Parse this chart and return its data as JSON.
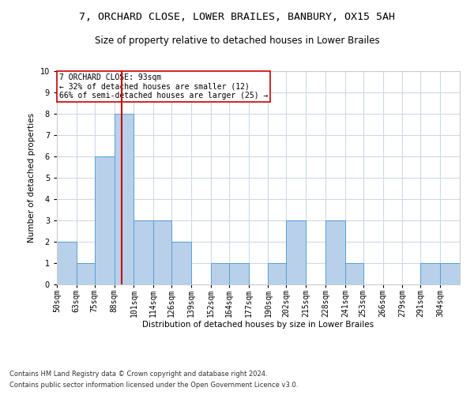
{
  "title": "7, ORCHARD CLOSE, LOWER BRAILES, BANBURY, OX15 5AH",
  "subtitle": "Size of property relative to detached houses in Lower Brailes",
  "xlabel": "Distribution of detached houses by size in Lower Brailes",
  "ylabel": "Number of detached properties",
  "footnote1": "Contains HM Land Registry data © Crown copyright and database right 2024.",
  "footnote2": "Contains public sector information licensed under the Open Government Licence v3.0.",
  "annotation_line1": "7 ORCHARD CLOSE: 93sqm",
  "annotation_line2": "← 32% of detached houses are smaller (12)",
  "annotation_line3": "66% of semi-detached houses are larger (25) →",
  "property_size": 93,
  "bar_color": "#b8d0ea",
  "bar_edge_color": "#5a9fd4",
  "redline_color": "#cc0000",
  "grid_color": "#d0d8e8",
  "background_color": "#ffffff",
  "categories": [
    "50sqm",
    "63sqm",
    "75sqm",
    "88sqm",
    "101sqm",
    "114sqm",
    "126sqm",
    "139sqm",
    "152sqm",
    "164sqm",
    "177sqm",
    "190sqm",
    "202sqm",
    "215sqm",
    "228sqm",
    "241sqm",
    "253sqm",
    "266sqm",
    "279sqm",
    "291sqm",
    "304sqm"
  ],
  "bin_edges": [
    50,
    63,
    75,
    88,
    101,
    114,
    126,
    139,
    152,
    164,
    177,
    190,
    202,
    215,
    228,
    241,
    253,
    266,
    279,
    291,
    304,
    317
  ],
  "values": [
    2,
    1,
    6,
    8,
    3,
    3,
    2,
    0,
    1,
    1,
    0,
    1,
    3,
    0,
    3,
    1,
    0,
    0,
    0,
    1,
    1
  ],
  "ylim": [
    0,
    10
  ],
  "yticks": [
    0,
    1,
    2,
    3,
    4,
    5,
    6,
    7,
    8,
    9,
    10
  ],
  "annotation_box_color": "#ffffff",
  "annotation_box_edge": "#cc0000",
  "title_fontsize": 9.5,
  "subtitle_fontsize": 8.5,
  "axis_label_fontsize": 7.5,
  "tick_fontsize": 7,
  "annotation_fontsize": 7,
  "footnote_fontsize": 6
}
